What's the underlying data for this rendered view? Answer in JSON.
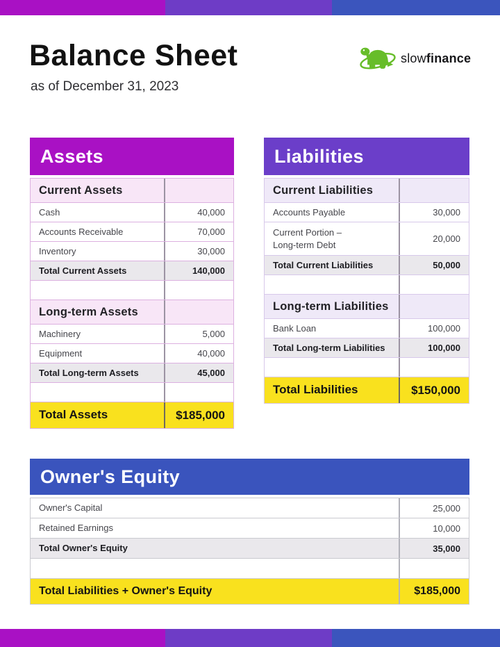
{
  "page": {
    "title": "Balance Sheet",
    "subtitle": "as of December 31, 2023"
  },
  "logo": {
    "brand_regular": "slow",
    "brand_bold": "finance",
    "icon": "turtle-icon"
  },
  "colors": {
    "magenta": "#a911c4",
    "purple": "#6e3cc6",
    "blue": "#3b55bd",
    "yellow": "#f9e11e",
    "assets_header": "#a911c4",
    "liabilities_header": "#6b3ec9",
    "equity_header": "#3a54bd",
    "logo_green": "#67bd29"
  },
  "tables": {
    "assets": {
      "title": "Assets",
      "sections": [
        {
          "header": "Current Assets",
          "rows": [
            {
              "label": "Cash",
              "value": "40,000"
            },
            {
              "label": "Accounts Receivable",
              "value": "70,000"
            },
            {
              "label": "Inventory",
              "value": "30,000"
            }
          ],
          "total": {
            "label": "Total Current Assets",
            "value": "140,000"
          }
        },
        {
          "header": "Long-term Assets",
          "rows": [
            {
              "label": "Machinery",
              "value": "5,000"
            },
            {
              "label": "Equipment",
              "value": "40,000"
            }
          ],
          "total": {
            "label": "Total Long-term Assets",
            "value": "45,000"
          }
        }
      ],
      "grand_total": {
        "label": "Total Assets",
        "value": "$185,000"
      }
    },
    "liabilities": {
      "title": "Liabilities",
      "sections": [
        {
          "header": "Current Liabilities",
          "rows": [
            {
              "label": "Accounts Payable",
              "value": "30,000"
            },
            {
              "label": "Current Portion –\nLong-term Debt",
              "value": "20,000"
            }
          ],
          "total": {
            "label": "Total Current Liabilities",
            "value": "50,000"
          }
        },
        {
          "header": "Long-term Liabilities",
          "rows": [
            {
              "label": "Bank Loan",
              "value": "100,000"
            }
          ],
          "total": {
            "label": "Total Long-term Liabilities",
            "value": "100,000"
          }
        }
      ],
      "grand_total": {
        "label": "Total Liabilities",
        "value": "$150,000"
      }
    },
    "equity": {
      "title": "Owner's Equity",
      "sections": [
        {
          "header": null,
          "rows": [
            {
              "label": "Owner's Capital",
              "value": "25,000"
            },
            {
              "label": "Retained Earnings",
              "value": "10,000"
            }
          ],
          "total": {
            "label": "Total Owner's Equity",
            "value": "35,000"
          }
        }
      ],
      "grand_total": {
        "label": "Total Liabilities + Owner's Equity",
        "value": "$185,000"
      }
    }
  }
}
